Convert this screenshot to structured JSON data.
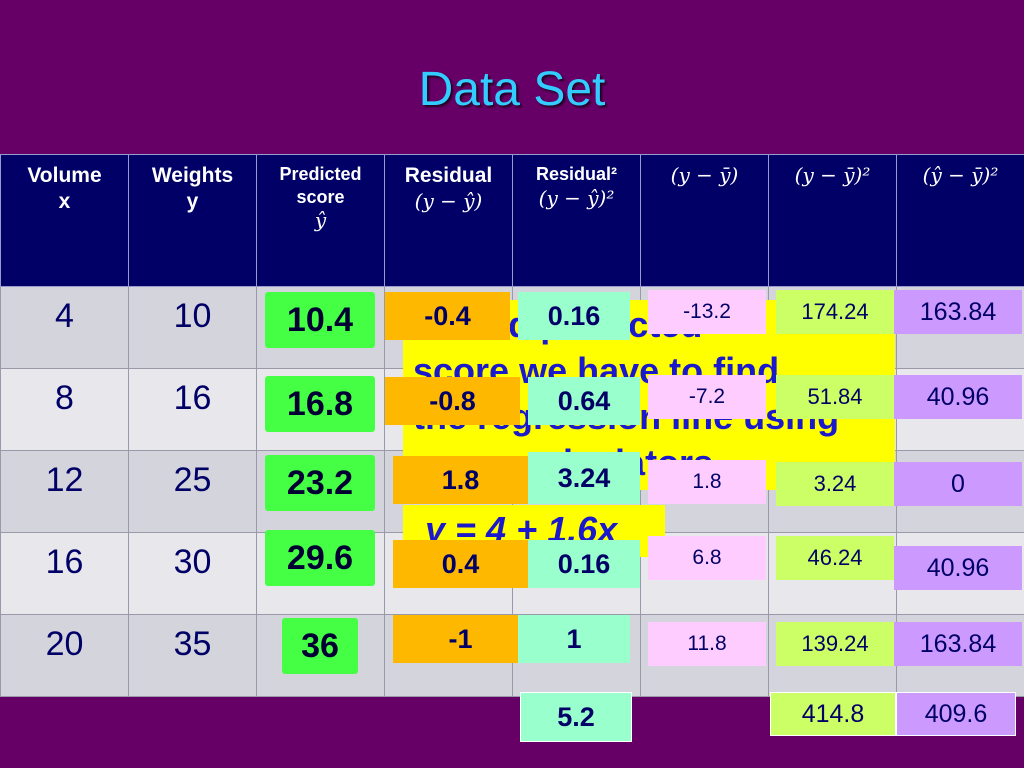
{
  "title": "Data Set",
  "headers": {
    "volume": {
      "line1": "Volume",
      "line2": "x"
    },
    "weights": {
      "line1": "Weights",
      "line2": "y"
    },
    "predicted": {
      "line1": "Predicted",
      "line2": "score",
      "symbol": "ŷ"
    },
    "residual": {
      "line1": "Residual",
      "formula": "(y − ŷ)"
    },
    "residual2": {
      "line1": "Residual²",
      "formula": "(y − ŷ)²"
    },
    "dev": {
      "formula": "(y − ȳ)"
    },
    "dev2": {
      "formula": "(y − ȳ)²"
    },
    "pdev2": {
      "formula": "(ŷ − ȳ)²"
    }
  },
  "rows": [
    {
      "x": "4",
      "y": "10",
      "pred": "10.4",
      "res": "-0.4",
      "res2": "0.16",
      "dev": "-13.2",
      "dev2": "174.24",
      "pdev2": "163.84"
    },
    {
      "x": "8",
      "y": "16",
      "pred": "16.8",
      "res": "-0.8",
      "res2": "0.64",
      "dev": "-7.2",
      "dev2": "51.84",
      "pdev2": "40.96"
    },
    {
      "x": "12",
      "y": "25",
      "pred": "23.2",
      "res": "1.8",
      "res2": "3.24",
      "dev": "1.8",
      "dev2": "3.24",
      "pdev2": "0"
    },
    {
      "x": "16",
      "y": "30",
      "pred": "29.6",
      "res": "0.4",
      "res2": "0.16",
      "dev": "6.8",
      "dev2": "46.24",
      "pdev2": "40.96"
    },
    {
      "x": "20",
      "y": "35",
      "pred": "36",
      "res": "-1",
      "res2": "1",
      "dev": "11.8",
      "dev2": "139.24",
      "pdev2": "163.84"
    }
  ],
  "totals": {
    "res2": "5.2",
    "dev2": "414.8",
    "pdev2": "409.6"
  },
  "overlay": {
    "line1": "To find predicted",
    "line2": "score we have to find",
    "line3": "the regression line using",
    "line4": "calculators",
    "equation": "y = 4 + 1.6x"
  }
}
